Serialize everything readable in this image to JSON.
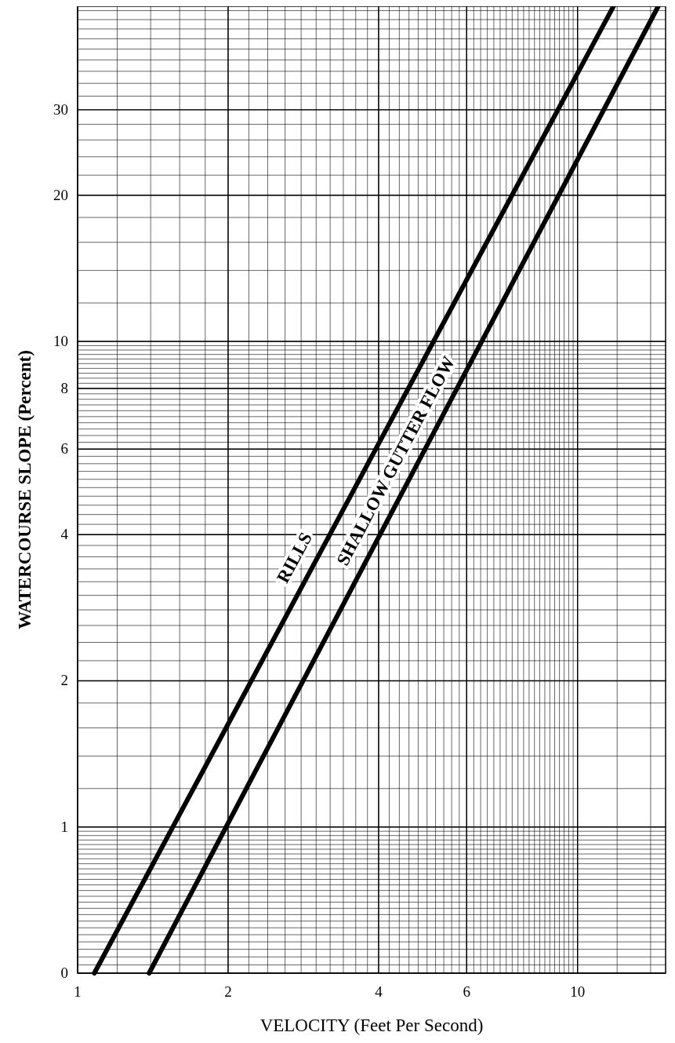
{
  "chart_data": {
    "type": "line",
    "xlabel": "VELOCITY (Feet Per Second)",
    "ylabel": "WATERCOURSE SLOPE (Percent)",
    "log": "xy",
    "xlim": [
      1,
      15
    ],
    "ylim": [
      0.5,
      49
    ],
    "xticks": [
      1,
      2,
      4,
      6,
      10
    ],
    "yticks": [
      {
        "value": 0.5,
        "label": "0"
      },
      1,
      2,
      4,
      6,
      8,
      10,
      20,
      30
    ],
    "grid": true,
    "series": [
      {
        "name": "RILLS",
        "color": "#000000",
        "x": [
          1.08,
          11.8
        ],
        "values": [
          0.5,
          49
        ]
      },
      {
        "name": "SHALLOW GUTTER FLOW",
        "color": "#000000",
        "x": [
          1.39,
          14.5
        ],
        "values": [
          0.5,
          49
        ]
      }
    ]
  }
}
